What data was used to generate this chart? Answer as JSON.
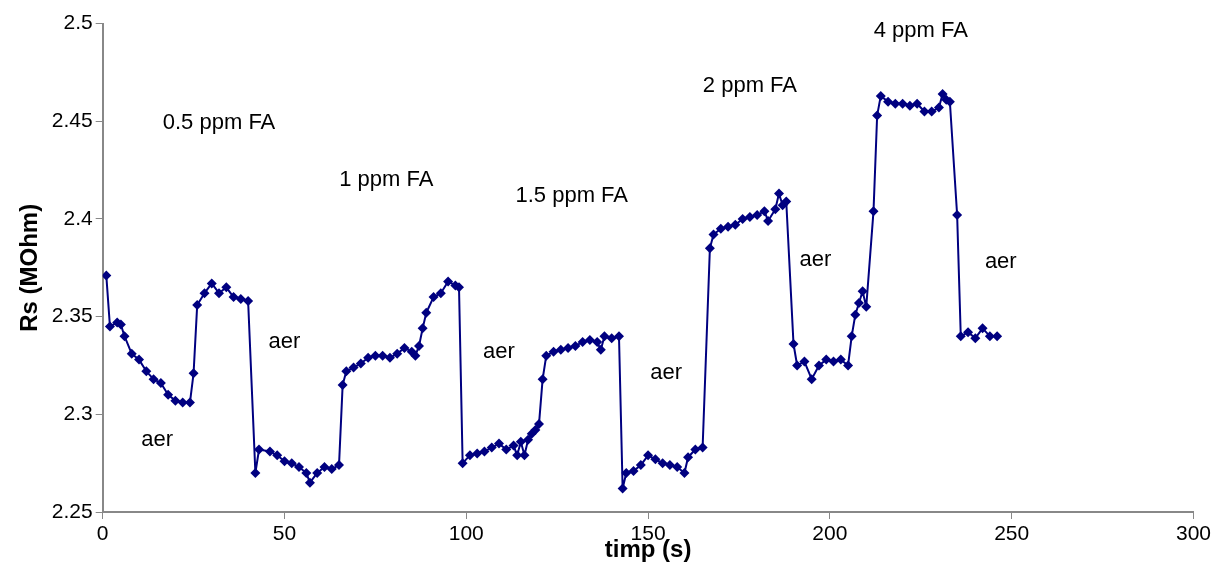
{
  "chart_data": {
    "type": "line",
    "xlabel": "timp (s)",
    "ylabel": "Rs (MOhm)",
    "xlim": [
      0,
      300
    ],
    "ylim": [
      2.25,
      2.5
    ],
    "xticks": [
      0,
      50,
      100,
      150,
      200,
      250,
      300
    ],
    "yticks": [
      2.25,
      2.3,
      2.35,
      2.4,
      2.45,
      2.5
    ],
    "grid": false,
    "legend": false,
    "marker": "diamond",
    "line_style": "solid",
    "series": [
      {
        "color": "#000080",
        "x": [
          1,
          2,
          4,
          5,
          6,
          8,
          10,
          12,
          14,
          16,
          18,
          20,
          22,
          24,
          25,
          26,
          28,
          30,
          32,
          34,
          36,
          38,
          40,
          42,
          43,
          46,
          48,
          50,
          52,
          54,
          56,
          57,
          59,
          61,
          63,
          65,
          66,
          67,
          69,
          71,
          73,
          75,
          77,
          79,
          81,
          83,
          85,
          86,
          87,
          88,
          89,
          91,
          93,
          95,
          97,
          98,
          99,
          101,
          103,
          105,
          107,
          109,
          111,
          113,
          114,
          115,
          116,
          117,
          118,
          119,
          120,
          121,
          122,
          124,
          126,
          128,
          130,
          132,
          134,
          136,
          137,
          138,
          140,
          142,
          143,
          144,
          146,
          148,
          150,
          152,
          154,
          156,
          158,
          160,
          161,
          163,
          165,
          167,
          168,
          170,
          172,
          174,
          176,
          178,
          180,
          182,
          183,
          185,
          186,
          187,
          188,
          190,
          191,
          193,
          195,
          197,
          199,
          201,
          203,
          205,
          206,
          207,
          208,
          209,
          210,
          212,
          213,
          214,
          216,
          218,
          220,
          222,
          224,
          226,
          228,
          230,
          231,
          232,
          233,
          235,
          236,
          238,
          240,
          242,
          244,
          246
        ],
        "values": [
          2.371,
          2.345,
          2.347,
          2.346,
          2.34,
          2.331,
          2.328,
          2.322,
          2.318,
          2.316,
          2.31,
          2.307,
          2.306,
          2.306,
          2.321,
          2.356,
          2.362,
          2.367,
          2.362,
          2.365,
          2.36,
          2.359,
          2.358,
          2.27,
          2.282,
          2.281,
          2.279,
          2.276,
          2.275,
          2.273,
          2.27,
          2.265,
          2.27,
          2.273,
          2.272,
          2.274,
          2.315,
          2.322,
          2.324,
          2.326,
          2.329,
          2.33,
          2.33,
          2.329,
          2.331,
          2.334,
          2.332,
          2.33,
          2.335,
          2.344,
          2.352,
          2.36,
          2.362,
          2.368,
          2.366,
          2.365,
          2.275,
          2.279,
          2.28,
          2.281,
          2.283,
          2.285,
          2.282,
          2.284,
          2.279,
          2.286,
          2.279,
          2.287,
          2.29,
          2.292,
          2.295,
          2.318,
          2.33,
          2.332,
          2.333,
          2.334,
          2.335,
          2.337,
          2.338,
          2.337,
          2.333,
          2.34,
          2.339,
          2.34,
          2.262,
          2.27,
          2.271,
          2.274,
          2.279,
          2.277,
          2.275,
          2.274,
          2.273,
          2.27,
          2.278,
          2.282,
          2.283,
          2.385,
          2.392,
          2.395,
          2.396,
          2.397,
          2.4,
          2.401,
          2.402,
          2.404,
          2.399,
          2.405,
          2.413,
          2.407,
          2.409,
          2.336,
          2.325,
          2.327,
          2.318,
          2.325,
          2.328,
          2.327,
          2.328,
          2.325,
          2.34,
          2.351,
          2.357,
          2.363,
          2.355,
          2.404,
          2.453,
          2.463,
          2.46,
          2.459,
          2.459,
          2.458,
          2.459,
          2.455,
          2.455,
          2.457,
          2.464,
          2.461,
          2.46,
          2.402,
          2.34,
          2.342,
          2.339,
          2.344,
          2.34,
          2.34
        ]
      }
    ],
    "annotations": [
      "0.5 ppm FA",
      "1 ppm FA",
      "1.5 ppm FA",
      "2 ppm FA",
      "4 ppm FA",
      "aer",
      "aer",
      "aer",
      "aer",
      "aer",
      "aer"
    ]
  }
}
